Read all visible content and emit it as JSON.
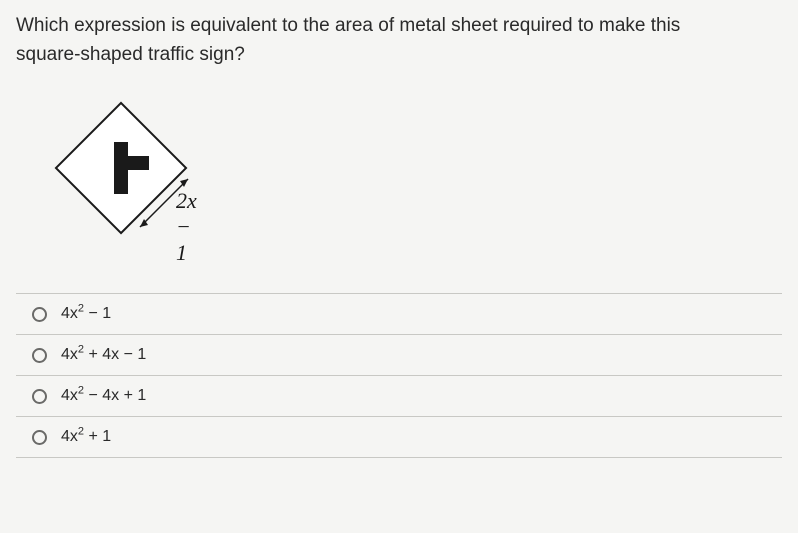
{
  "question": {
    "text_line1": "Which expression is equivalent to the area of metal sheet required to make this",
    "text_line2": "square-shaped traffic sign?"
  },
  "diagram": {
    "side_label": "2x − 1",
    "shape": "diamond-square",
    "symbol": "T-intersection",
    "colors": {
      "sign_bg": "#ffffff",
      "sign_border": "#1a1a1a",
      "symbol": "#1a1a1a"
    }
  },
  "options": [
    {
      "id": "a",
      "expr_html": "4x<sup>2</sup> − 1"
    },
    {
      "id": "b",
      "expr_html": "4x<sup>2</sup> + 4x − 1"
    },
    {
      "id": "c",
      "expr_html": "4x<sup>2</sup> − 4x + 1"
    },
    {
      "id": "d",
      "expr_html": "4x<sup>2</sup> + 1"
    }
  ],
  "styling": {
    "background": "#f5f5f3",
    "text_color": "#2a2a2a",
    "border_color": "#c8c8c4",
    "radio_border": "#6a6a68",
    "question_fontsize": 19,
    "option_fontsize": 16
  }
}
